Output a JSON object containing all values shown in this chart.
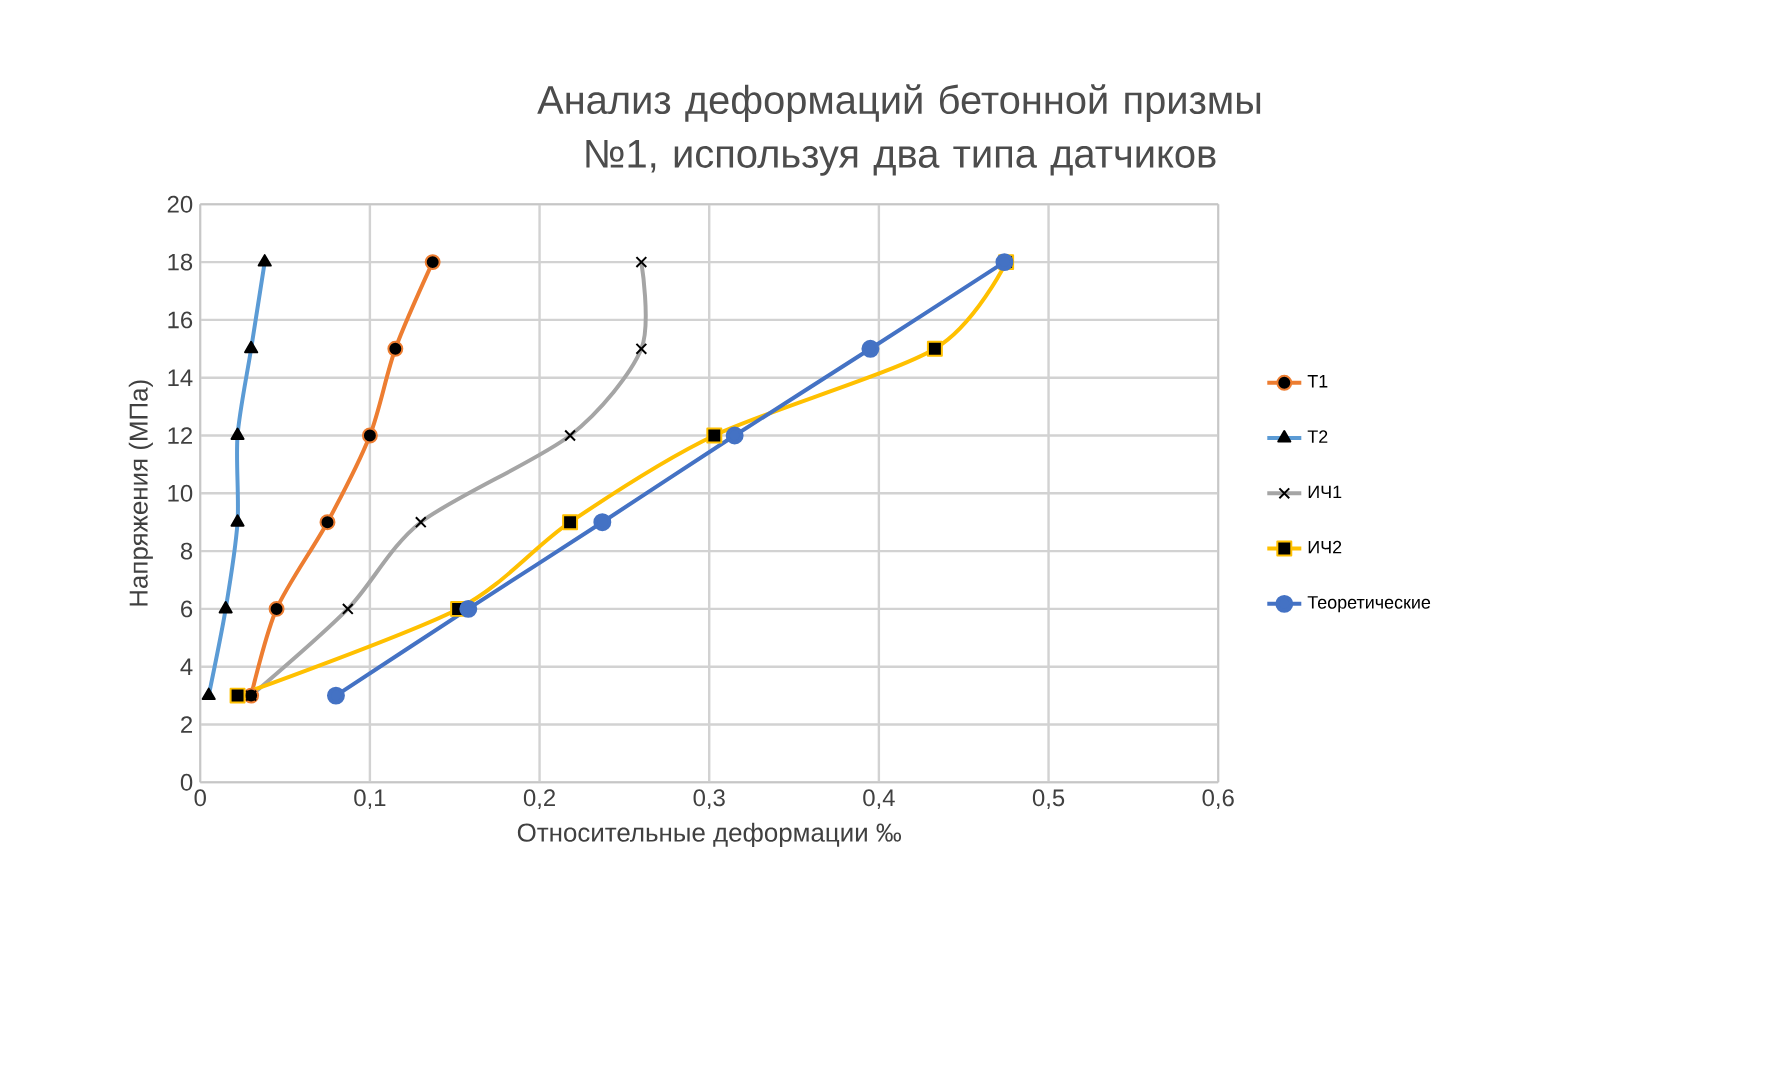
{
  "chart_data": {
    "type": "line",
    "title": "Анализ деформаций бетонной призмы №1, используя два типа датчиков",
    "xlabel": "Относительные деформации ‰",
    "ylabel": "Напряжения (МПа)",
    "xlim": [
      0,
      0.6
    ],
    "xticks": [
      {
        "value": 0,
        "label": "0"
      },
      {
        "value": 0.1,
        "label": "0,1"
      },
      {
        "value": 0.2,
        "label": "0,2"
      },
      {
        "value": 0.3,
        "label": "0,3"
      },
      {
        "value": 0.4,
        "label": "0,4"
      },
      {
        "value": 0.5,
        "label": "0,5"
      },
      {
        "value": 0.6,
        "label": "0,6"
      }
    ],
    "ylim": [
      0,
      20
    ],
    "yticks": [
      0,
      2,
      4,
      6,
      8,
      10,
      12,
      14,
      16,
      18,
      20
    ],
    "grid": true,
    "legend": "right",
    "series": [
      {
        "name": "T1",
        "color": "#ed7d31",
        "marker": "circle",
        "x": [
          0.03,
          0.045,
          0.075,
          0.1,
          0.115,
          0.137
        ],
        "values": [
          3,
          6,
          9,
          12,
          15,
          18
        ]
      },
      {
        "name": "T2",
        "color": "#5b9bd5",
        "marker": "triangle",
        "x": [
          0.005,
          0.015,
          0.022,
          0.022,
          0.03,
          0.038
        ],
        "values": [
          3,
          6,
          9,
          12,
          15,
          18
        ]
      },
      {
        "name": "ИЧ1",
        "color": "#a5a5a5",
        "marker": "cross",
        "x": [
          0.03,
          0.087,
          0.13,
          0.218,
          0.26,
          0.26
        ],
        "values": [
          3,
          6,
          9,
          12,
          15,
          18
        ]
      },
      {
        "name": "ИЧ2",
        "color": "#ffc000",
        "marker": "square",
        "x": [
          0.022,
          0.152,
          0.218,
          0.303,
          0.433,
          0.475
        ],
        "values": [
          3,
          6,
          9,
          12,
          15,
          18
        ]
      },
      {
        "name": "Теоретические",
        "color": "#4472c4",
        "marker": "circle",
        "x": [
          0.08,
          0.158,
          0.237,
          0.315,
          0.395,
          0.474
        ],
        "values": [
          3,
          6,
          9,
          12,
          15,
          18
        ]
      }
    ]
  }
}
